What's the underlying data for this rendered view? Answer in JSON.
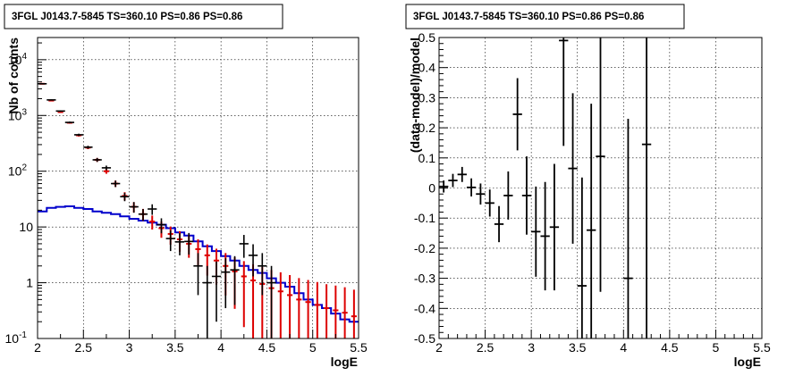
{
  "chart_data": [
    {
      "type": "histogram",
      "title": "3FGL J0143.7-5845 TS=360.10 PS=0.86 PS=0.86",
      "xlabel": "logE",
      "ylabel": "Nb of counts",
      "xlim": [
        2,
        5.5
      ],
      "ylim": [
        0.1,
        25000
      ],
      "yscale": "log",
      "grid": true,
      "x_ticks": [
        "2",
        "2.5",
        "3",
        "3.5",
        "4",
        "4.5",
        "5",
        "5.5"
      ],
      "y_ticks": [
        {
          "label": "10",
          "exp": "-1",
          "value": 0.1
        },
        {
          "label": "1",
          "exp": "",
          "value": 1
        },
        {
          "label": "10",
          "exp": "",
          "value": 10
        },
        {
          "label": "10",
          "exp": "2",
          "value": 100
        },
        {
          "label": "10",
          "exp": "3",
          "value": 1000
        },
        {
          "label": "10",
          "exp": "4",
          "value": 10000
        }
      ],
      "series": [
        {
          "color": "#000000",
          "style": "points_with_errors",
          "x": [
            2.05,
            2.15,
            2.25,
            2.35,
            2.45,
            2.55,
            2.65,
            2.75,
            2.85,
            2.95,
            3.05,
            3.15,
            3.25,
            3.35,
            3.45,
            3.55,
            3.65,
            3.75,
            3.85,
            3.95,
            4.05,
            4.15,
            4.25,
            4.35,
            4.45,
            4.55,
            4.65,
            4.75,
            4.85,
            4.95,
            5.05,
            5.15,
            5.25,
            5.35,
            5.45
          ],
          "y": [
            3700,
            1900,
            1200,
            750,
            450,
            270,
            160,
            115,
            60,
            35,
            23,
            17,
            21,
            11,
            6.2,
            5.4,
            5.5,
            2,
            1,
            1.3,
            1.55,
            1.7,
            5,
            3.1,
            2,
            1,
            0,
            0,
            0,
            0,
            0,
            0,
            0,
            0,
            0
          ],
          "err": [
            60,
            44,
            35,
            27,
            21,
            16,
            13,
            11,
            8,
            6,
            5,
            4,
            4.5,
            3.3,
            2.5,
            2.3,
            2.3,
            1.4,
            1,
            1.1,
            1.2,
            1.3,
            2.2,
            1.8,
            1.4,
            1,
            0,
            0,
            0,
            0,
            0,
            0,
            0,
            0,
            0
          ]
        },
        {
          "color": "#dd0000",
          "style": "model_with_errors",
          "x": [
            2.05,
            2.15,
            2.25,
            2.35,
            2.45,
            2.55,
            2.65,
            2.75,
            2.85,
            2.95,
            3.05,
            3.15,
            3.25,
            3.35,
            3.45,
            3.55,
            3.65,
            3.75,
            3.85,
            3.95,
            4.05,
            4.15,
            4.25,
            4.35,
            4.45,
            4.55,
            4.65,
            4.75,
            4.85,
            4.95,
            5.05,
            5.15,
            5.25,
            5.35,
            5.45
          ],
          "y": [
            3700,
            1850,
            1150,
            740,
            440,
            265,
            160,
            100,
            60,
            36,
            23,
            17,
            12.5,
            9.5,
            7.5,
            6,
            5,
            4,
            3.1,
            2.5,
            2,
            1.6,
            1.3,
            1.1,
            0.95,
            0.8,
            0.7,
            0.6,
            0.5,
            0.45,
            0.4,
            0.35,
            0.32,
            0.29,
            0.25
          ],
          "err": [
            60,
            43,
            34,
            27,
            21,
            16,
            13,
            10,
            8,
            6,
            4.8,
            4.1,
            3.5,
            3.1,
            2.7,
            2.4,
            2.2,
            2,
            1.76,
            1.58,
            1.41,
            1.26,
            1.14,
            1.05,
            0.97,
            0.89,
            0.84,
            0.77,
            0.71,
            0.67,
            0.63,
            0.59,
            0.57,
            0.54,
            0.5
          ]
        },
        {
          "color": "#0000cc",
          "style": "step",
          "x": [
            2.05,
            2.15,
            2.25,
            2.35,
            2.45,
            2.55,
            2.65,
            2.75,
            2.85,
            2.95,
            3.05,
            3.15,
            3.25,
            3.35,
            3.45,
            3.55,
            3.65,
            3.75,
            3.85,
            3.95,
            4.05,
            4.15,
            4.25,
            4.35,
            4.45,
            4.55,
            4.65,
            4.75,
            4.85,
            4.95,
            5.05,
            5.15,
            5.25,
            5.35,
            5.45
          ],
          "y": [
            19,
            22,
            23,
            23.5,
            22,
            21,
            19,
            18,
            17,
            15.5,
            14,
            13,
            12,
            11,
            9.5,
            8,
            7,
            5.5,
            4.5,
            3.7,
            3,
            2.5,
            2,
            1.7,
            1.5,
            1.2,
            1,
            0.85,
            0.65,
            0.5,
            0.4,
            0.35,
            0.28,
            0.22,
            0.2
          ]
        }
      ]
    },
    {
      "type": "scatter",
      "title": "3FGL J0143.7-5845 TS=360.10 PS=0.86 PS=0.86",
      "xlabel": "logE",
      "ylabel": "(data-model)/model",
      "xlim": [
        2,
        5.5
      ],
      "ylim": [
        -0.5,
        0.5
      ],
      "grid": true,
      "x_ticks": [
        "2",
        "2.5",
        "3",
        "3.5",
        "4",
        "4.5",
        "5",
        "5.5"
      ],
      "y_ticks": [
        "-0.5",
        "-0.4",
        "-0.3",
        "-0.2",
        "-0.1",
        "0",
        "0.1",
        "0.2",
        "0.3",
        "0.4",
        "0.5"
      ],
      "series": [
        {
          "color": "#000000",
          "x": [
            2.05,
            2.15,
            2.25,
            2.35,
            2.45,
            2.55,
            2.65,
            2.75,
            2.85,
            2.95,
            3.05,
            3.15,
            3.25,
            3.35,
            3.45,
            3.55,
            3.65,
            3.75,
            4.05,
            4.25
          ],
          "y": [
            0.005,
            0.025,
            0.045,
            0.002,
            -0.02,
            -0.05,
            -0.12,
            -0.025,
            0.245,
            -0.025,
            -0.145,
            -0.16,
            -0.13,
            0.49,
            0.065,
            -0.325,
            -0.14,
            0.105,
            -0.3,
            0.145
          ],
          "err": [
            0.02,
            0.022,
            0.025,
            0.03,
            0.035,
            0.045,
            0.06,
            0.08,
            0.12,
            0.13,
            0.15,
            0.18,
            0.21,
            0.35,
            0.25,
            0.36,
            0.42,
            0.45,
            0.53,
            0.65
          ]
        }
      ]
    }
  ]
}
